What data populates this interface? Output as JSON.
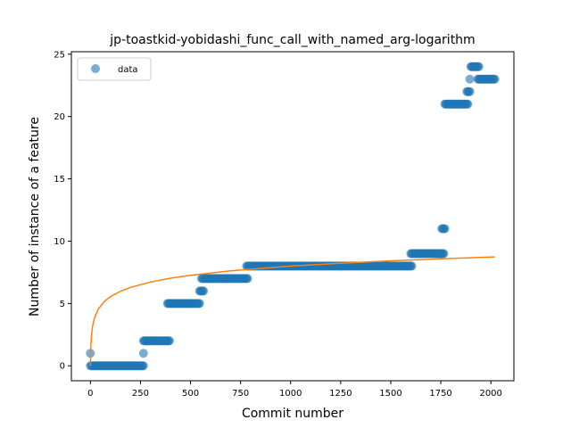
{
  "chart_data": {
    "type": "scatter",
    "title": "jp-toastkid-yobidashi_func_call_with_named_arg-logarithm",
    "xlabel": "Commit number",
    "ylabel": "Number of instance of a feature",
    "xlim": [
      -95,
      2115
    ],
    "ylim": [
      -1.2,
      25.2
    ],
    "xticks": [
      0,
      250,
      500,
      750,
      1000,
      1250,
      1500,
      1750,
      2000
    ],
    "yticks": [
      0,
      5,
      10,
      15,
      20,
      25
    ],
    "grid": false,
    "legend": {
      "placement": "top-left",
      "entries": [
        "data"
      ]
    },
    "series": [
      {
        "name": "data",
        "kind": "points",
        "color": "#1f77b4",
        "segments": [
          {
            "x_start": 0,
            "x_end": 265,
            "y": 0
          },
          {
            "x_start": 265,
            "x_end": 395,
            "y": 2
          },
          {
            "x_start": 385,
            "x_end": 545,
            "y": 5
          },
          {
            "x_start": 545,
            "x_end": 565,
            "y": 6
          },
          {
            "x_start": 555,
            "x_end": 785,
            "y": 7
          },
          {
            "x_start": 780,
            "x_end": 1605,
            "y": 8
          },
          {
            "x_start": 1600,
            "x_end": 1765,
            "y": 9
          },
          {
            "x_start": 1755,
            "x_end": 1770,
            "y": 11
          },
          {
            "x_start": 1770,
            "x_end": 1885,
            "y": 21
          },
          {
            "x_start": 1880,
            "x_end": 1895,
            "y": 22
          },
          {
            "x_start": 1900,
            "x_end": 1940,
            "y": 24
          },
          {
            "x_start": 1935,
            "x_end": 2020,
            "y": 23
          }
        ],
        "points": [
          {
            "x": 0,
            "y": 1
          },
          {
            "x": 265,
            "y": 1
          },
          {
            "x": 1895,
            "y": 23
          }
        ]
      },
      {
        "kind": "line",
        "color": "#ff7f0e",
        "fit": "logarithmic",
        "x": [
          0,
          1,
          2,
          5,
          10,
          20,
          40,
          70,
          100,
          150,
          200,
          300,
          400,
          500,
          700,
          1000,
          1250,
          1500,
          1750,
          2020
        ],
        "y": [
          0.0,
          0.93,
          1.47,
          2.37,
          3.1,
          3.83,
          4.57,
          5.17,
          5.55,
          5.98,
          6.29,
          6.72,
          7.03,
          7.26,
          7.62,
          8.0,
          8.23,
          8.42,
          8.58,
          8.74
        ]
      }
    ]
  }
}
